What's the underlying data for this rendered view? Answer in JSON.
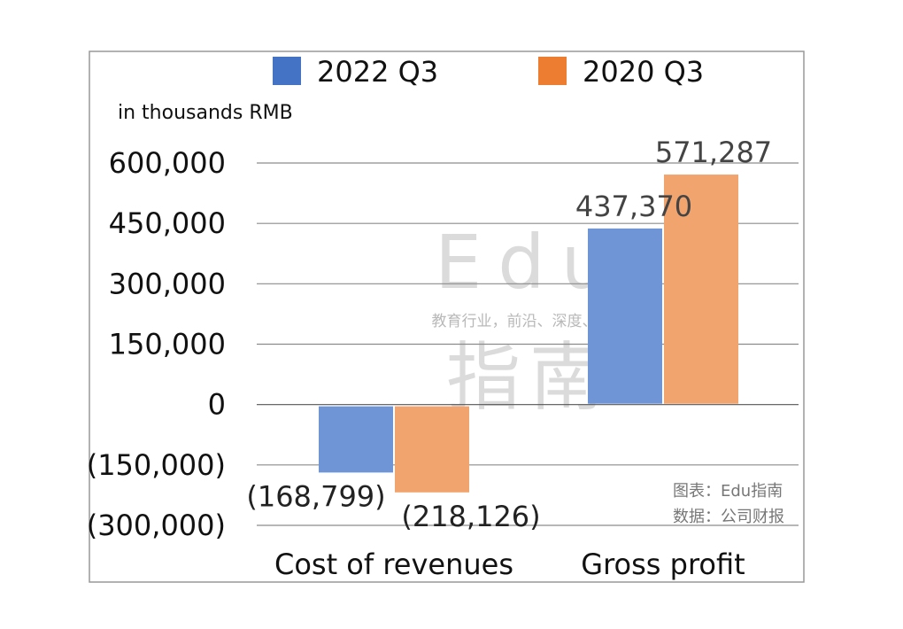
{
  "chart_data": {
    "type": "bar",
    "categories": [
      "Cost of revenues",
      "Gross profit"
    ],
    "series": [
      {
        "name": "2022 Q3",
        "values": [
          -168799,
          437370
        ],
        "labels": [
          "(168,799)",
          "437,370"
        ],
        "color": "#6F95D6"
      },
      {
        "name": "2020 Q3",
        "values": [
          -218126,
          571287
        ],
        "labels": [
          "(218,126)",
          "571,287"
        ],
        "color": "#F2A46E"
      }
    ],
    "legend_colors": [
      "#4472C4",
      "#ED7D31"
    ],
    "ylim": [
      -300000,
      600000
    ],
    "yticks": [
      600000,
      450000,
      300000,
      150000,
      0,
      -150000,
      -300000
    ],
    "ytick_labels": [
      "600,000",
      "450,000",
      "300,000",
      "150,000",
      "0",
      "(150,000)",
      "(300,000)"
    ],
    "unit_label": "in thousands RMB",
    "grid": true,
    "legend_position": "top"
  },
  "watermark": {
    "brand": "Edu",
    "tagline": "教育行业，前沿、深度、独家",
    "cn_name": "指南"
  },
  "source": {
    "line1": "图表：Edu指南",
    "line2": "数据：公司财报"
  }
}
